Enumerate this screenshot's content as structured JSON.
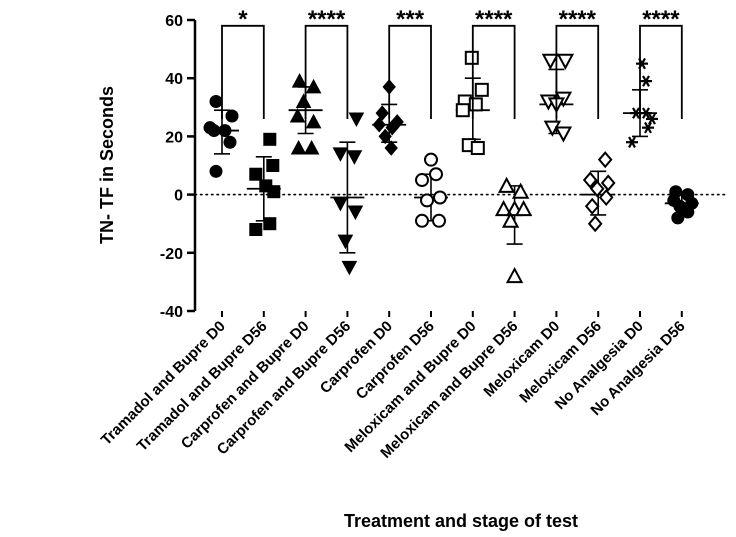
{
  "chart_data": {
    "type": "scatter",
    "ylabel": "TN- TF in  Seconds",
    "xlabel": "Treatment and stage of test",
    "ylim": [
      -40,
      60
    ],
    "yticks": [
      -40,
      -20,
      0,
      20,
      40,
      60
    ],
    "reference_line": {
      "y": 0,
      "style": "dotted"
    },
    "categories": [
      "Tramadol and Bupre D0",
      "Tramadol and Bupre D56",
      "Carprofen and Bupre D0",
      "Carprofen and Bupre D56",
      "Carprofen D0",
      "Carprofen D56",
      "Meloxicam and Bupre D0",
      "Meloxicam and Bupre D56",
      "Meloxicam D0",
      "Meloxicam D56",
      "No Analgesia D0",
      "No Analgesia D56"
    ],
    "groups": [
      {
        "marker": "circle-filled",
        "mean": 22,
        "sd_low": 14,
        "sd_high": 29,
        "points": [
          [
            -6,
            32
          ],
          [
            10,
            27
          ],
          [
            -12,
            23
          ],
          [
            3,
            22
          ],
          [
            -8,
            22
          ],
          [
            8,
            18
          ],
          [
            -6,
            8
          ]
        ]
      },
      {
        "marker": "square-filled",
        "mean": 2,
        "sd_low": -9,
        "sd_high": 13,
        "points": [
          [
            6,
            19
          ],
          [
            9,
            10
          ],
          [
            -8,
            7
          ],
          [
            2,
            3
          ],
          [
            10,
            1
          ],
          [
            -8,
            -12
          ],
          [
            6,
            -10
          ]
        ]
      },
      {
        "marker": "triangle-up-filled",
        "mean": 29,
        "sd_low": 21,
        "sd_high": 37,
        "points": [
          [
            -6,
            39
          ],
          [
            8,
            37
          ],
          [
            -2,
            32
          ],
          [
            -8,
            27
          ],
          [
            8,
            25
          ],
          [
            -7,
            16
          ],
          [
            6,
            16
          ]
        ]
      },
      {
        "marker": "triangle-down-filled",
        "mean": -1,
        "sd_low": -20,
        "sd_high": 18,
        "points": [
          [
            9,
            26
          ],
          [
            -7,
            14
          ],
          [
            7,
            13
          ],
          [
            -7,
            -3
          ],
          [
            8,
            -6
          ],
          [
            -2,
            -16
          ],
          [
            2,
            -25
          ]
        ]
      },
      {
        "marker": "diamond-filled",
        "mean": 24,
        "sd_low": 18,
        "sd_high": 31,
        "points": [
          [
            0,
            37
          ],
          [
            -7,
            28
          ],
          [
            8,
            25
          ],
          [
            -10,
            24
          ],
          [
            3,
            23
          ],
          [
            -4,
            20
          ],
          [
            2,
            16
          ]
        ]
      },
      {
        "marker": "circle-open",
        "mean": -1,
        "sd_low": -9,
        "sd_high": 7,
        "points": [
          [
            0,
            12
          ],
          [
            5,
            7
          ],
          [
            -9,
            5
          ],
          [
            9,
            -1
          ],
          [
            -4,
            -2
          ],
          [
            -9,
            -9
          ],
          [
            8,
            -9
          ]
        ]
      },
      {
        "marker": "square-open",
        "mean": 29,
        "sd_low": 19,
        "sd_high": 40,
        "points": [
          [
            -1,
            47
          ],
          [
            9,
            36
          ],
          [
            -8,
            32
          ],
          [
            3,
            31
          ],
          [
            -10,
            29
          ],
          [
            -4,
            17
          ],
          [
            5,
            16
          ]
        ]
      },
      {
        "marker": "triangle-up-open",
        "mean": -7,
        "sd_low": -17,
        "sd_high": 3,
        "points": [
          [
            -8,
            3
          ],
          [
            6,
            1
          ],
          [
            -11,
            -5
          ],
          [
            0,
            -5
          ],
          [
            9,
            -5
          ],
          [
            -4,
            -9
          ],
          [
            0,
            -28
          ]
        ]
      },
      {
        "marker": "triangle-down-open",
        "mean": 31,
        "sd_low": 21,
        "sd_high": 43,
        "points": [
          [
            -6,
            46
          ],
          [
            9,
            46
          ],
          [
            -8,
            32
          ],
          [
            7,
            33
          ],
          [
            0,
            31
          ],
          [
            -4,
            23
          ],
          [
            7,
            21
          ]
        ]
      },
      {
        "marker": "diamond-open",
        "mean": 0,
        "sd_low": -7,
        "sd_high": 8,
        "points": [
          [
            7,
            12
          ],
          [
            -8,
            5
          ],
          [
            10,
            4
          ],
          [
            -1,
            2
          ],
          [
            -6,
            -4
          ],
          [
            8,
            -1
          ],
          [
            -3,
            -10
          ]
        ]
      },
      {
        "marker": "asterisk",
        "mean": 28,
        "sd_low": 20,
        "sd_high": 36,
        "points": [
          [
            2,
            45
          ],
          [
            6,
            39
          ],
          [
            -4,
            28
          ],
          [
            6,
            28
          ],
          [
            12,
            26
          ],
          [
            8,
            23
          ],
          [
            -8,
            18
          ]
        ]
      },
      {
        "marker": "circle-filled",
        "mean": -3,
        "sd_low": -7,
        "sd_high": 1,
        "points": [
          [
            -6,
            1
          ],
          [
            6,
            0
          ],
          [
            -8,
            -2
          ],
          [
            10,
            -3
          ],
          [
            -2,
            -4
          ],
          [
            6,
            -6
          ],
          [
            -4,
            -8
          ]
        ]
      }
    ],
    "comparisons": [
      {
        "from": 0,
        "to": 1,
        "label": "*"
      },
      {
        "from": 2,
        "to": 3,
        "label": "****"
      },
      {
        "from": 4,
        "to": 5,
        "label": "***"
      },
      {
        "from": 6,
        "to": 7,
        "label": "****"
      },
      {
        "from": 8,
        "to": 9,
        "label": "****"
      },
      {
        "from": 10,
        "to": 11,
        "label": "****"
      }
    ]
  }
}
